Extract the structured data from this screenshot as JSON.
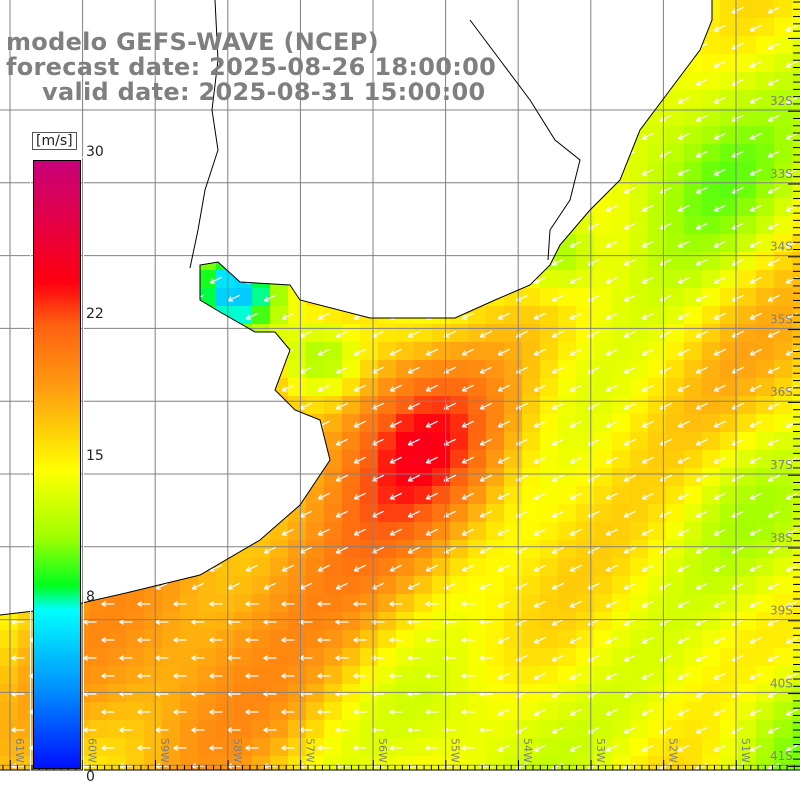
{
  "title": {
    "line1": "modelo GEFS-WAVE (NCEP)",
    "line2": "forecast date: 2025-08-26 18:00:00",
    "line3": "valid date: 2025-08-31 15:00:00"
  },
  "colorbar": {
    "unit": "[m/s]",
    "ticks": [
      {
        "label": "30",
        "value": 30
      },
      {
        "label": "22",
        "value": 22
      },
      {
        "label": "15",
        "value": 15
      },
      {
        "label": "8",
        "value": 8
      },
      {
        "label": "0",
        "value": 0
      }
    ],
    "min": 0,
    "max": 30
  },
  "axes": {
    "lon_labels": [
      "61W",
      "60W",
      "59W",
      "58W",
      "57W",
      "56W",
      "55W",
      "54W",
      "53W",
      "52W",
      "51W"
    ],
    "lat_labels": [
      "32S",
      "33S",
      "34S",
      "35S",
      "36S",
      "37S",
      "38S",
      "39S",
      "40S",
      "41S"
    ]
  },
  "colors": {
    "land": "#ffffff",
    "grid": "#808080",
    "coast": "#000000",
    "arrow": "#ffffff",
    "text": "#7f7f7f"
  }
}
